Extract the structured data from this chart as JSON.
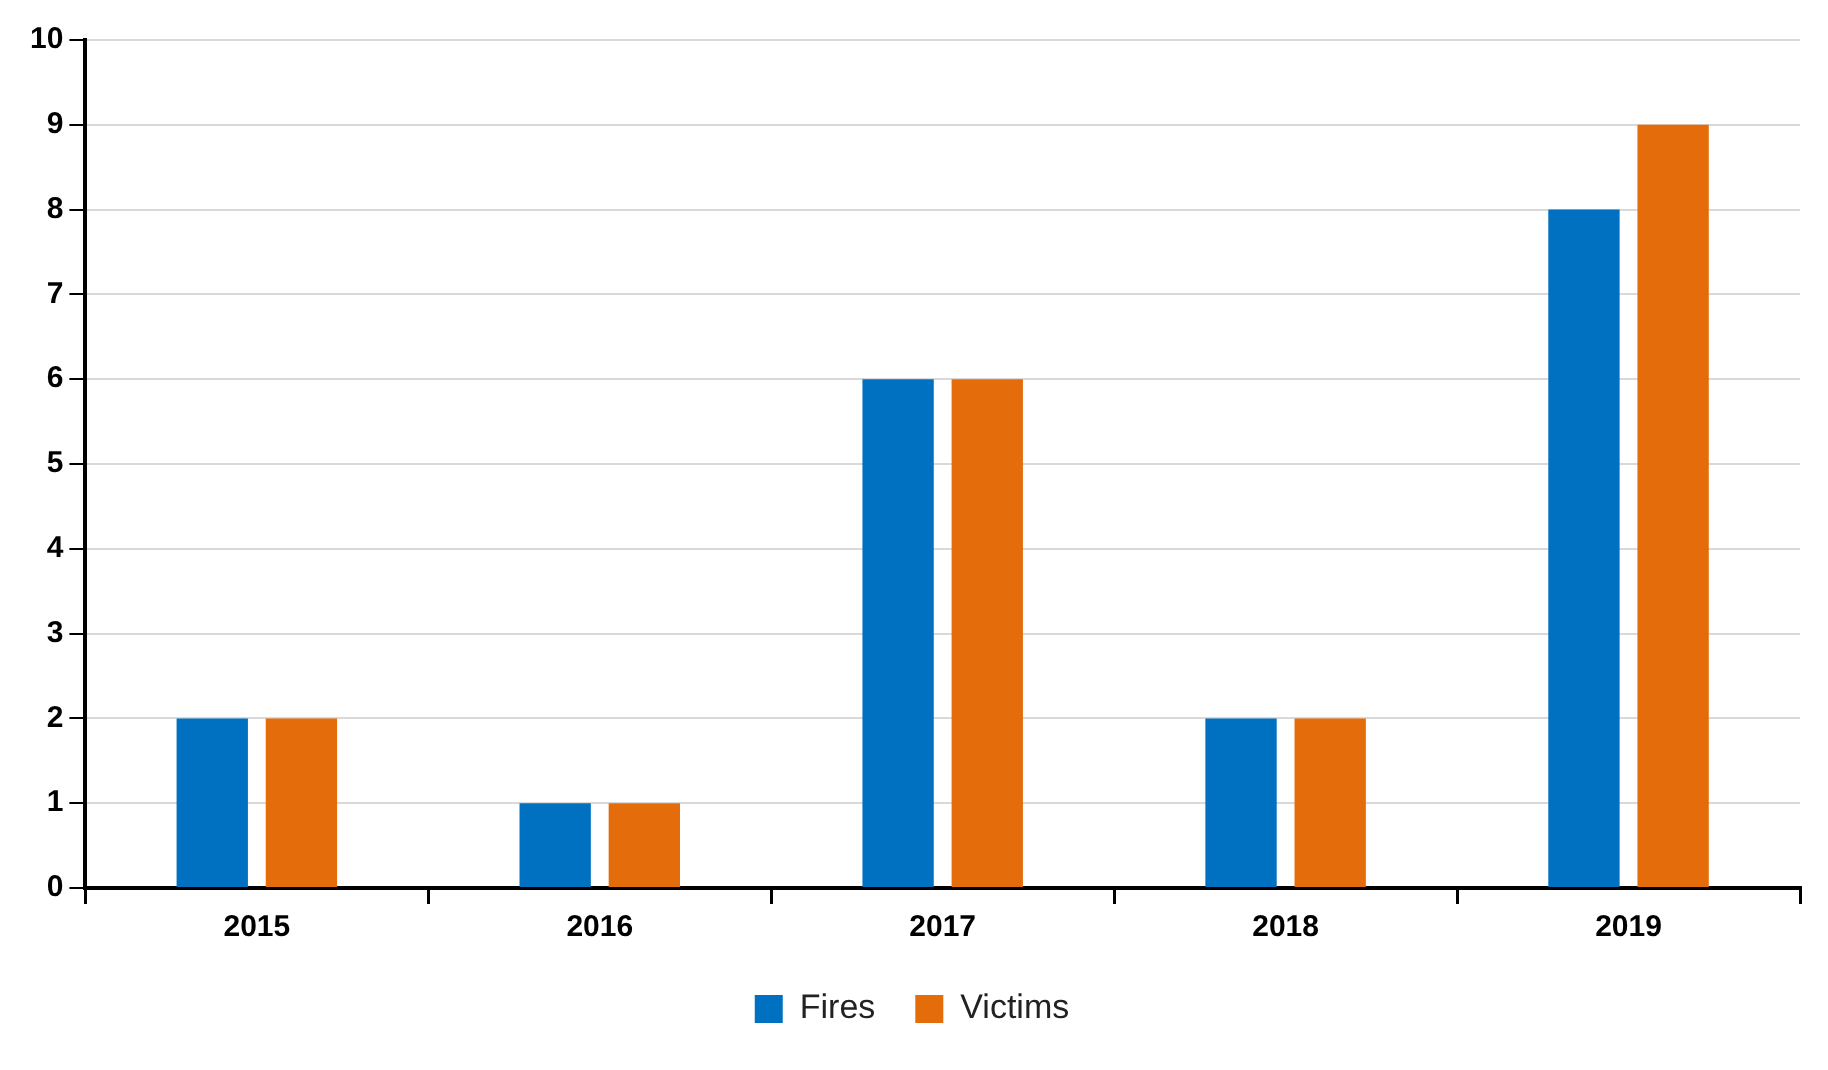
{
  "chart_data": {
    "type": "bar",
    "categories": [
      "2015",
      "2016",
      "2017",
      "2018",
      "2019"
    ],
    "series": [
      {
        "name": "Fires",
        "color": "#0070c0",
        "values": [
          2,
          1,
          6,
          2,
          8
        ]
      },
      {
        "name": "Victims",
        "color": "#e46c0a",
        "values": [
          2,
          1,
          6,
          2,
          9
        ]
      }
    ],
    "ylim": [
      0,
      10
    ],
    "yticks": [
      0,
      1,
      2,
      3,
      4,
      5,
      6,
      7,
      8,
      9,
      10
    ],
    "grid": "y",
    "legend": "bottom"
  }
}
